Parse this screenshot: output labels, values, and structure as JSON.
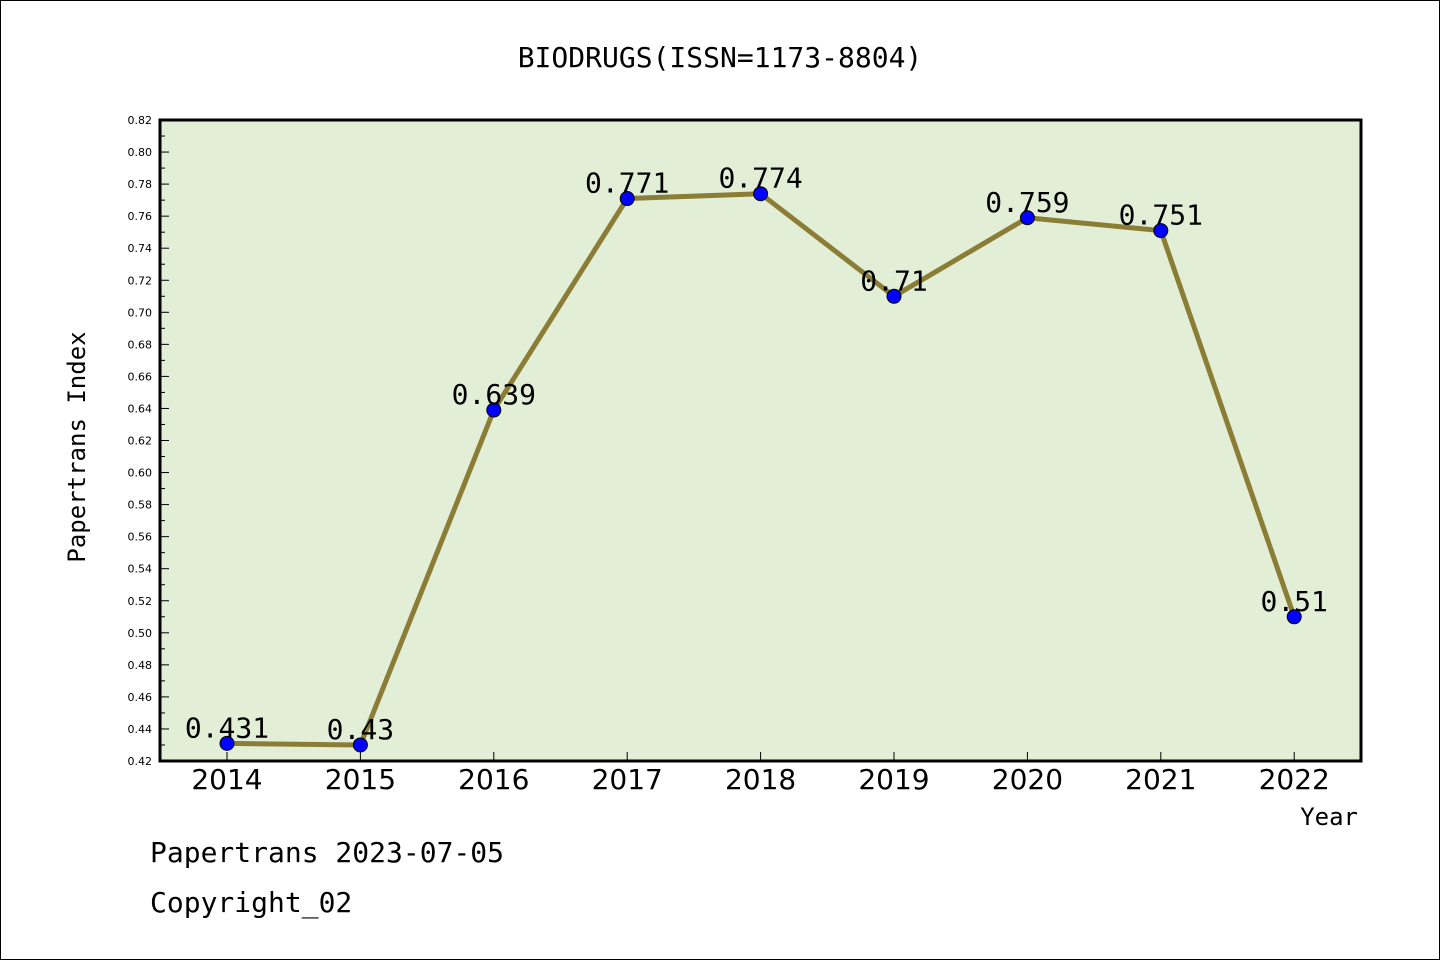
{
  "chart_data": {
    "type": "line",
    "title": "BIODRUGS(ISSN=1173-8804)",
    "xlabel": "Year",
    "ylabel": "Papertrans Index",
    "categories": [
      "2014",
      "2015",
      "2016",
      "2017",
      "2018",
      "2019",
      "2020",
      "2021",
      "2022"
    ],
    "series": [
      {
        "values": [
          0.431,
          0.43,
          0.639,
          0.771,
          0.774,
          0.71,
          0.759,
          0.751,
          0.51
        ]
      }
    ],
    "data_labels": [
      "0.431",
      "0.43",
      "0.639",
      "0.771",
      "0.774",
      "0.71",
      "0.759",
      "0.751",
      "0.51"
    ],
    "ylim": [
      0.42,
      0.82
    ],
    "yticks": [
      "0.42",
      "0.44",
      "0.46",
      "0.48",
      "0.50",
      "0.52",
      "0.54",
      "0.56",
      "0.58",
      "0.60",
      "0.62",
      "0.64",
      "0.66",
      "0.68",
      "0.70",
      "0.72",
      "0.74",
      "0.76",
      "0.78",
      "0.80",
      "0.82"
    ],
    "grid": false,
    "colors": {
      "plot_background": "#e2efd6",
      "line": "#8b7d35",
      "marker": "#0000ff",
      "marker_edge": "#000000"
    }
  },
  "footer": {
    "line1": "Papertrans 2023-07-05",
    "line2": "Copyright_02"
  }
}
